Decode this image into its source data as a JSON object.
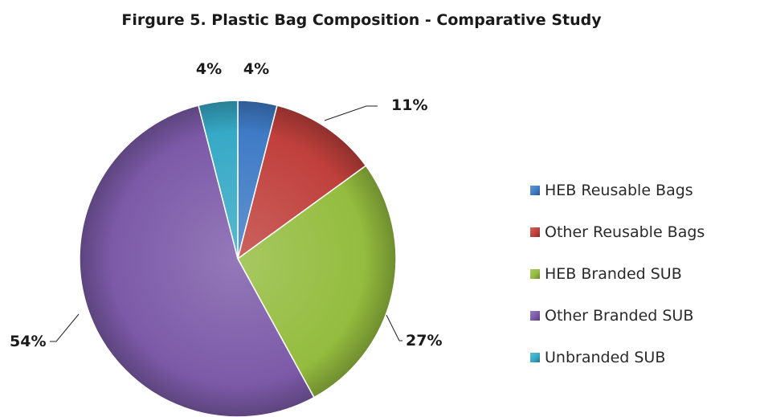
{
  "chart_data": {
    "type": "pie",
    "title": "Firgure 5. Plastic Bag Composition - Comparative Study",
    "categories": [
      "HEB Reusable Bags",
      "Other Reusable Bags",
      "HEB Branded SUB",
      "Other Branded SUB",
      "Unbranded SUB"
    ],
    "values": [
      4,
      11,
      27,
      54,
      4
    ],
    "labels": [
      "4%",
      "11%",
      "27%",
      "54%",
      "4%"
    ],
    "colors": [
      "#3f7bc6",
      "#c0403c",
      "#94bc3e",
      "#7c5aa8",
      "#36a9c6"
    ],
    "legend": "right",
    "style": "3d-shaded"
  }
}
